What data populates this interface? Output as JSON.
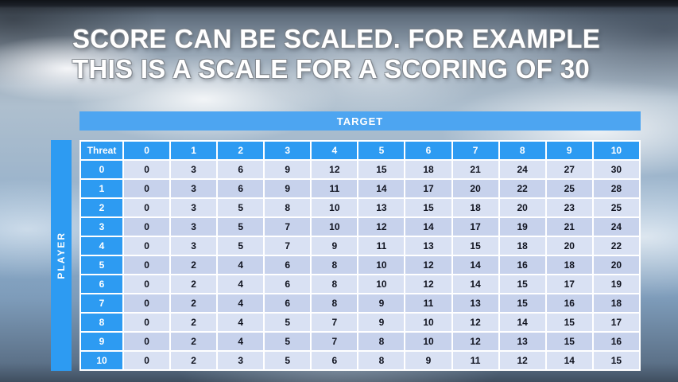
{
  "title": {
    "line1": "SCORE CAN BE SCALED. FOR EXAMPLE",
    "line2": "THIS IS A SCALE FOR A SCORING OF 30"
  },
  "chart_data": {
    "type": "table",
    "top_label": "TARGET",
    "left_label": "PLAYER",
    "corner_label": "Threat",
    "column_headers": [
      "0",
      "1",
      "2",
      "3",
      "4",
      "5",
      "6",
      "7",
      "8",
      "9",
      "10"
    ],
    "rows": [
      {
        "threat": "0",
        "values": [
          0,
          3,
          6,
          9,
          12,
          15,
          18,
          21,
          24,
          27,
          30
        ]
      },
      {
        "threat": "1",
        "values": [
          0,
          3,
          6,
          9,
          11,
          14,
          17,
          20,
          22,
          25,
          28
        ]
      },
      {
        "threat": "2",
        "values": [
          0,
          3,
          5,
          8,
          10,
          13,
          15,
          18,
          20,
          23,
          25
        ]
      },
      {
        "threat": "3",
        "values": [
          0,
          3,
          5,
          7,
          10,
          12,
          14,
          17,
          19,
          21,
          24
        ]
      },
      {
        "threat": "4",
        "values": [
          0,
          3,
          5,
          7,
          9,
          11,
          13,
          15,
          18,
          20,
          22
        ]
      },
      {
        "threat": "5",
        "values": [
          0,
          2,
          4,
          6,
          8,
          10,
          12,
          14,
          16,
          18,
          20
        ]
      },
      {
        "threat": "6",
        "values": [
          0,
          2,
          4,
          6,
          8,
          10,
          12,
          14,
          15,
          17,
          19
        ]
      },
      {
        "threat": "7",
        "values": [
          0,
          2,
          4,
          6,
          8,
          9,
          11,
          13,
          15,
          16,
          18
        ]
      },
      {
        "threat": "8",
        "values": [
          0,
          2,
          4,
          5,
          7,
          9,
          10,
          12,
          14,
          15,
          17
        ]
      },
      {
        "threat": "9",
        "values": [
          0,
          2,
          4,
          5,
          7,
          8,
          10,
          12,
          13,
          15,
          16
        ]
      },
      {
        "threat": "10",
        "values": [
          0,
          2,
          3,
          5,
          6,
          8,
          9,
          11,
          12,
          14,
          15
        ]
      }
    ]
  },
  "colors": {
    "header_blue": "#2D9BF2",
    "banner_blue": "#4DA5F1",
    "band_light": "#D9E1F3",
    "band_dark": "#C7D2EC",
    "grid_white": "#FFFFFF"
  }
}
